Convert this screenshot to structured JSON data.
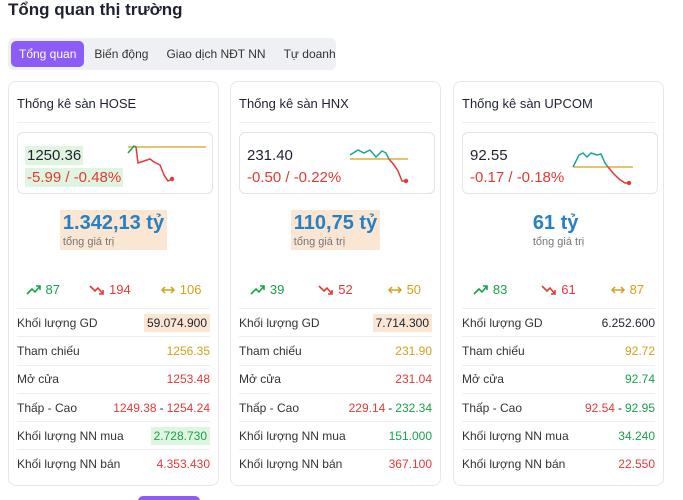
{
  "page": {
    "title": "Tổng quan thị trường"
  },
  "tabs": [
    {
      "label": "Tổng quan",
      "active": true
    },
    {
      "label": "Biến động",
      "active": false
    },
    {
      "label": "Giao dịch NĐT NN",
      "active": false
    },
    {
      "label": "Tự doanh",
      "active": false
    }
  ],
  "colors": {
    "accent": "#8b5cf6",
    "up": "#16a34a",
    "down": "#e53935",
    "ref": "#d4a017",
    "value_blue": "#2680c2"
  },
  "cards": [
    {
      "title": "Thống kê sàn HOSE",
      "index_value": "1250.36",
      "index_change": "-5.99 / -0.48%",
      "total_value": "1.342,13 tỷ",
      "total_label": "tổng giá trị",
      "advances": "87",
      "declines": "194",
      "unchanged": "106",
      "rows": {
        "volume": {
          "label": "Khối lượng GD",
          "value": "59.074.900"
        },
        "reference": {
          "label": "Tham chiếu",
          "value": "1256.35"
        },
        "open": {
          "label": "Mở cửa",
          "value": "1253.48"
        },
        "low_high": {
          "label": "Thấp - Cao",
          "low": "1249.38",
          "sep": "-",
          "high": "1254.24"
        },
        "foreign_buy": {
          "label": "Khối lượng NN mua",
          "value": "2.728.730"
        },
        "foreign_sell": {
          "label": "Khối lượng NN bán",
          "value": "4.353.430"
        }
      }
    },
    {
      "title": "Thống kê sàn HNX",
      "index_value": "231.40",
      "index_change": "-0.50 / -0.22%",
      "total_value": "110,75 tỷ",
      "total_label": "tổng giá trị",
      "advances": "39",
      "declines": "52",
      "unchanged": "50",
      "rows": {
        "volume": {
          "label": "Khối lượng GD",
          "value": "7.714.300"
        },
        "reference": {
          "label": "Tham chiếu",
          "value": "231.90"
        },
        "open": {
          "label": "Mở cửa",
          "value": "231.04"
        },
        "low_high": {
          "label": "Thấp - Cao",
          "low": "229.14",
          "sep": "-",
          "high": "232.34"
        },
        "foreign_buy": {
          "label": "Khối lượng NN mua",
          "value": "151.000"
        },
        "foreign_sell": {
          "label": "Khối lượng NN bán",
          "value": "367.100"
        }
      }
    },
    {
      "title": "Thống kê sàn UPCOM",
      "index_value": "92.55",
      "index_change": "-0.17 / -0.18%",
      "total_value": "61 tỷ",
      "total_label": "tổng giá trị",
      "advances": "83",
      "declines": "61",
      "unchanged": "87",
      "rows": {
        "volume": {
          "label": "Khối lượng GD",
          "value": "6.252.600"
        },
        "reference": {
          "label": "Tham chiếu",
          "value": "92.72"
        },
        "open": {
          "label": "Mở cửa",
          "value": "92.74"
        },
        "low_high": {
          "label": "Thấp - Cao",
          "low": "92.54",
          "sep": "-",
          "high": "92.95"
        },
        "foreign_buy": {
          "label": "Khối lượng NN mua",
          "value": "34.240"
        },
        "foreign_sell": {
          "label": "Khối lượng NN bán",
          "value": "22.550"
        }
      }
    }
  ]
}
